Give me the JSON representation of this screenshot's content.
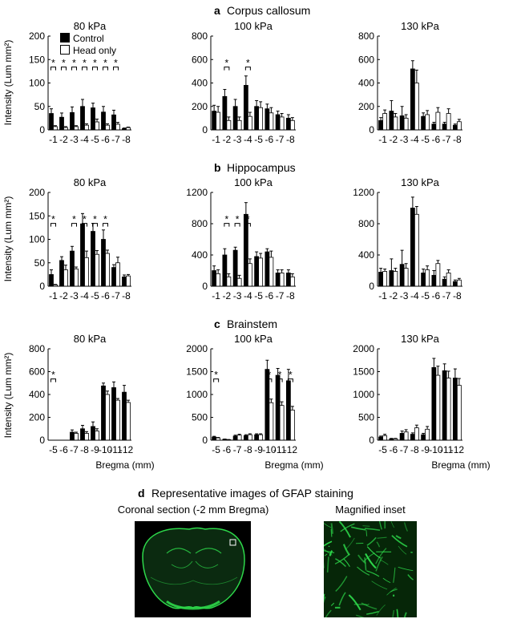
{
  "sections": [
    {
      "letter": "a",
      "title": "Corpus callosum"
    },
    {
      "letter": "b",
      "title": "Hippocampus"
    },
    {
      "letter": "c",
      "title": "Brainstem"
    },
    {
      "letter": "d",
      "title": "Representative images of GFAP staining"
    }
  ],
  "ylabel": "Intensity (Lum mm²)",
  "xlabel": "Bregma (mm)",
  "legend": [
    "Control",
    "Head only"
  ],
  "images": {
    "coronal_label": "Coronal section (-2 mm Bregma)",
    "inset_label": "Magnified inset"
  },
  "colors": {
    "control": "#000000",
    "head_only": "#ffffff",
    "gfap": "#2dd84a"
  },
  "chart_data": [
    {
      "type": "bar",
      "section": "a",
      "title": "80 kPa",
      "categories": [
        "-1",
        "-2",
        "-3",
        "-4",
        "-5",
        "-6",
        "-7",
        "-8"
      ],
      "ylim": [
        0,
        200
      ],
      "yticks": [
        0,
        50,
        100,
        150,
        200
      ],
      "series": [
        {
          "name": "Control",
          "values": [
            35,
            27,
            37,
            50,
            47,
            38,
            32,
            3
          ],
          "errors": [
            10,
            9,
            12,
            15,
            10,
            12,
            10,
            1
          ]
        },
        {
          "name": "Head only",
          "values": [
            7,
            5,
            7,
            10,
            17,
            10,
            12,
            5
          ],
          "errors": [
            2,
            2,
            2,
            3,
            6,
            3,
            4,
            1
          ]
        }
      ],
      "significant": [
        0,
        1,
        2,
        3,
        4,
        5,
        6
      ]
    },
    {
      "type": "bar",
      "section": "a",
      "title": "100 kPa",
      "categories": [
        "-1",
        "-2",
        "-3",
        "-4",
        "-5",
        "-6",
        "-7",
        "-8"
      ],
      "ylim": [
        0,
        800
      ],
      "yticks": [
        0,
        200,
        400,
        600,
        800
      ],
      "series": [
        {
          "name": "Control",
          "values": [
            160,
            285,
            200,
            380,
            200,
            180,
            130,
            100
          ],
          "errors": [
            50,
            60,
            60,
            80,
            50,
            40,
            30,
            30
          ]
        },
        {
          "name": "Head only",
          "values": [
            150,
            80,
            80,
            115,
            190,
            145,
            110,
            80
          ],
          "errors": [
            50,
            30,
            30,
            35,
            50,
            45,
            30,
            25
          ]
        }
      ],
      "significant": [
        1,
        3
      ]
    },
    {
      "type": "bar",
      "section": "a",
      "title": "130 kPa",
      "categories": [
        "-1",
        "-2",
        "-3",
        "-4",
        "-5",
        "-6",
        "-7",
        "-8"
      ],
      "ylim": [
        0,
        800
      ],
      "yticks": [
        0,
        200,
        400,
        600,
        800
      ],
      "series": [
        {
          "name": "Control",
          "values": [
            80,
            160,
            120,
            520,
            115,
            50,
            50,
            40
          ],
          "errors": [
            25,
            90,
            80,
            70,
            30,
            15,
            15,
            10
          ]
        },
        {
          "name": "Head only",
          "values": [
            140,
            110,
            100,
            400,
            130,
            150,
            140,
            70
          ],
          "errors": [
            30,
            30,
            30,
            110,
            35,
            40,
            40,
            20
          ]
        }
      ],
      "significant": []
    },
    {
      "type": "bar",
      "section": "b",
      "title": "80 kPa",
      "categories": [
        "-1",
        "-2",
        "-3",
        "-4",
        "-5",
        "-6",
        "-7",
        "-8"
      ],
      "ylim": [
        0,
        200
      ],
      "yticks": [
        0,
        50,
        100,
        150,
        200
      ],
      "series": [
        {
          "name": "Control",
          "values": [
            25,
            55,
            75,
            133,
            117,
            100,
            40,
            20
          ],
          "errors": [
            10,
            8,
            10,
            22,
            17,
            20,
            6,
            4
          ]
        },
        {
          "name": "Head only",
          "values": [
            3,
            35,
            37,
            61,
            68,
            70,
            50,
            22
          ],
          "errors": [
            1,
            10,
            4,
            14,
            8,
            7,
            12,
            3
          ]
        }
      ],
      "significant": [
        0,
        2,
        3,
        4,
        5
      ]
    },
    {
      "type": "bar",
      "section": "b",
      "title": "100 kPa",
      "categories": [
        "-1",
        "-2",
        "-3",
        "-4",
        "-5",
        "-6",
        "-7",
        "-8"
      ],
      "ylim": [
        0,
        1200
      ],
      "yticks": [
        0,
        400,
        800,
        1200
      ],
      "series": [
        {
          "name": "Control",
          "values": [
            200,
            400,
            460,
            920,
            380,
            440,
            170,
            170
          ],
          "errors": [
            60,
            80,
            40,
            150,
            60,
            40,
            40,
            40
          ]
        },
        {
          "name": "Head only",
          "values": [
            160,
            120,
            100,
            290,
            360,
            370,
            170,
            120
          ],
          "errors": [
            50,
            40,
            40,
            60,
            60,
            80,
            40,
            40
          ]
        }
      ],
      "significant": [
        1,
        2,
        3
      ]
    },
    {
      "type": "bar",
      "section": "b",
      "title": "130 kPa",
      "categories": [
        "-1",
        "-2",
        "-3",
        "-4",
        "-5",
        "-6",
        "-7",
        "-8"
      ],
      "ylim": [
        0,
        1200
      ],
      "yticks": [
        0,
        400,
        800,
        1200
      ],
      "series": [
        {
          "name": "Control",
          "values": [
            180,
            200,
            280,
            1000,
            170,
            140,
            90,
            60
          ],
          "errors": [
            50,
            150,
            180,
            140,
            50,
            60,
            30,
            20
          ]
        },
        {
          "name": "Head only",
          "values": [
            190,
            190,
            230,
            920,
            210,
            290,
            170,
            80
          ],
          "errors": [
            30,
            40,
            60,
            100,
            50,
            40,
            40,
            20
          ]
        }
      ],
      "significant": []
    },
    {
      "type": "bar",
      "section": "c",
      "title": "80 kPa",
      "categories": [
        "-5",
        "-6",
        "-7",
        "-8",
        "-9",
        "-10",
        "-11",
        "-12"
      ],
      "ylim": [
        0,
        800
      ],
      "yticks": [
        0,
        200,
        400,
        600,
        800
      ],
      "series": [
        {
          "name": "Control",
          "values": [
            0,
            0,
            70,
            100,
            120,
            475,
            460,
            420
          ],
          "errors": [
            0,
            0,
            20,
            30,
            40,
            25,
            50,
            60
          ]
        },
        {
          "name": "Head only",
          "values": [
            0,
            0,
            60,
            60,
            80,
            400,
            350,
            330
          ],
          "errors": [
            0,
            0,
            10,
            15,
            20,
            30,
            15,
            20
          ]
        }
      ],
      "significant": [
        0
      ]
    },
    {
      "type": "bar",
      "section": "c",
      "title": "100 kPa",
      "categories": [
        "-5",
        "-6",
        "-7",
        "-8",
        "-9",
        "-10",
        "-11",
        "-12"
      ],
      "ylim": [
        0,
        2000
      ],
      "yticks": [
        0,
        500,
        1000,
        1500,
        2000
      ],
      "series": [
        {
          "name": "Control",
          "values": [
            70,
            20,
            90,
            100,
            120,
            1550,
            1420,
            1300
          ],
          "errors": [
            15,
            5,
            20,
            20,
            20,
            200,
            150,
            250
          ]
        },
        {
          "name": "Head only",
          "values": [
            50,
            10,
            110,
            120,
            120,
            820,
            760,
            660
          ],
          "errors": [
            10,
            5,
            20,
            20,
            20,
            80,
            80,
            80
          ]
        }
      ],
      "significant": [
        0,
        5,
        6,
        7
      ]
    },
    {
      "type": "bar",
      "section": "c",
      "title": "130 kPa",
      "categories": [
        "-5",
        "-6",
        "-7",
        "-8",
        "-9",
        "-10",
        "-11",
        "-12"
      ],
      "ylim": [
        0,
        2000
      ],
      "yticks": [
        0,
        500,
        1000,
        1500,
        2000
      ],
      "series": [
        {
          "name": "Control",
          "values": [
            70,
            30,
            150,
            130,
            120,
            1590,
            1520,
            1360
          ],
          "errors": [
            20,
            10,
            50,
            30,
            30,
            200,
            150,
            200
          ]
        },
        {
          "name": "Head only",
          "values": [
            100,
            30,
            180,
            270,
            240,
            1420,
            1360,
            1200
          ],
          "errors": [
            30,
            10,
            50,
            60,
            60,
            200,
            150,
            150
          ]
        }
      ],
      "significant": []
    }
  ]
}
